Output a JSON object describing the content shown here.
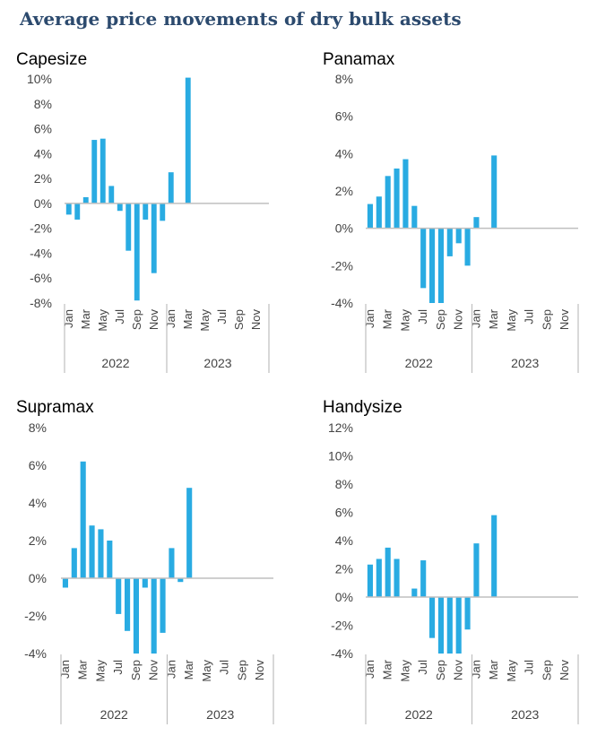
{
  "page_title": "Average price movements of dry bulk assets",
  "colors": {
    "bar": "#29abe2",
    "axis": "#bfbfbf",
    "title": "#2c4a6e"
  },
  "chart_data": [
    {
      "type": "bar",
      "title": "Capesize",
      "categories": [
        "Jan",
        "Feb",
        "Mar",
        "Apr",
        "May",
        "Jun",
        "Jul",
        "Aug",
        "Sep",
        "Oct",
        "Nov",
        "Dec",
        "Jan",
        "Feb",
        "Mar",
        "Apr",
        "May",
        "Jun",
        "Jul",
        "Aug",
        "Sep",
        "Oct",
        "Nov",
        "Dec"
      ],
      "tick_labels": [
        "Jan",
        "Mar",
        "May",
        "Jul",
        "Sep",
        "Nov",
        "Jan",
        "Mar",
        "May",
        "Jul",
        "Sep",
        "Nov"
      ],
      "groups": [
        {
          "label": "2022",
          "count": 12
        },
        {
          "label": "2023",
          "count": 12
        }
      ],
      "values": [
        -0.9,
        -1.3,
        0.5,
        5.1,
        5.2,
        1.4,
        -0.6,
        -3.8,
        -7.8,
        -1.3,
        -5.6,
        -1.4,
        2.5,
        0,
        10.1,
        null,
        null,
        null,
        null,
        null,
        null,
        null,
        null,
        null
      ],
      "ylim": [
        -8,
        10
      ],
      "yticks": [
        -8,
        -6,
        -4,
        -2,
        0,
        2,
        4,
        6,
        8,
        10
      ],
      "ytick_labels": [
        "-8%",
        "-6%",
        "-4%",
        "-2%",
        "0%",
        "2%",
        "4%",
        "6%",
        "8%",
        "10%"
      ]
    },
    {
      "type": "bar",
      "title": "Panamax",
      "categories": [
        "Jan",
        "Feb",
        "Mar",
        "Apr",
        "May",
        "Jun",
        "Jul",
        "Aug",
        "Sep",
        "Oct",
        "Nov",
        "Dec",
        "Jan",
        "Feb",
        "Mar",
        "Apr",
        "May",
        "Jun",
        "Jul",
        "Aug",
        "Sep",
        "Oct",
        "Nov",
        "Dec"
      ],
      "tick_labels": [
        "Jan",
        "Mar",
        "May",
        "Jul",
        "Sep",
        "Nov",
        "Jan",
        "Mar",
        "May",
        "Jul",
        "Sep",
        "Nov"
      ],
      "groups": [
        {
          "label": "2022",
          "count": 12
        },
        {
          "label": "2023",
          "count": 12
        }
      ],
      "values": [
        1.3,
        1.7,
        2.8,
        3.2,
        3.7,
        1.2,
        -3.2,
        -4.0,
        -4.0,
        -1.5,
        -0.8,
        -2.0,
        0.6,
        0,
        3.9,
        null,
        null,
        null,
        null,
        null,
        null,
        null,
        null,
        null
      ],
      "ylim": [
        -4,
        8
      ],
      "yticks": [
        -4,
        -2,
        0,
        2,
        4,
        6,
        8
      ],
      "ytick_labels": [
        "-4%",
        "-2%",
        "0%",
        "2%",
        "4%",
        "6%",
        "8%"
      ]
    },
    {
      "type": "bar",
      "title": "Supramax",
      "categories": [
        "Jan",
        "Feb",
        "Mar",
        "Apr",
        "May",
        "Jun",
        "Jul",
        "Aug",
        "Sep",
        "Oct",
        "Nov",
        "Dec",
        "Jan",
        "Feb",
        "Mar",
        "Apr",
        "May",
        "Jun",
        "Jul",
        "Aug",
        "Sep",
        "Oct",
        "Nov",
        "Dec"
      ],
      "tick_labels": [
        "Jan",
        "Mar",
        "May",
        "Jul",
        "Sep",
        "Nov",
        "Jan",
        "Mar",
        "May",
        "Jul",
        "Sep",
        "Nov"
      ],
      "groups": [
        {
          "label": "2022",
          "count": 12
        },
        {
          "label": "2023",
          "count": 12
        }
      ],
      "values": [
        -0.5,
        1.6,
        6.2,
        2.8,
        2.6,
        2.0,
        -1.9,
        -2.8,
        -4.0,
        -0.5,
        -4.0,
        -2.9,
        1.6,
        -0.2,
        4.8,
        null,
        null,
        null,
        null,
        null,
        null,
        null,
        null,
        null
      ],
      "ylim": [
        -4,
        8
      ],
      "yticks": [
        -4,
        -2,
        0,
        2,
        4,
        6,
        8
      ],
      "ytick_labels": [
        "-4%",
        "-2%",
        "0%",
        "2%",
        "4%",
        "6%",
        "8%"
      ]
    },
    {
      "type": "bar",
      "title": "Handysize",
      "categories": [
        "Jan",
        "Feb",
        "Mar",
        "Apr",
        "May",
        "Jun",
        "Jul",
        "Aug",
        "Sep",
        "Oct",
        "Nov",
        "Dec",
        "Jan",
        "Feb",
        "Mar",
        "Apr",
        "May",
        "Jun",
        "Jul",
        "Aug",
        "Sep",
        "Oct",
        "Nov",
        "Dec"
      ],
      "tick_labels": [
        "Jan",
        "Mar",
        "May",
        "Jul",
        "Sep",
        "Nov",
        "Jan",
        "Mar",
        "May",
        "Jul",
        "Sep",
        "Nov"
      ],
      "groups": [
        {
          "label": "2022",
          "count": 12
        },
        {
          "label": "2023",
          "count": 12
        }
      ],
      "values": [
        2.3,
        2.7,
        3.5,
        2.7,
        0,
        0.6,
        2.6,
        -2.9,
        -4.0,
        -4.0,
        -4.0,
        -2.3,
        3.8,
        0,
        5.8,
        null,
        null,
        null,
        null,
        null,
        null,
        null,
        null,
        null
      ],
      "ylim": [
        -4,
        12
      ],
      "yticks": [
        -4,
        -2,
        0,
        2,
        4,
        6,
        8,
        10,
        12
      ],
      "ytick_labels": [
        "-4%",
        "-2%",
        "0%",
        "2%",
        "4%",
        "6%",
        "8%",
        "10%",
        "12%"
      ]
    }
  ]
}
